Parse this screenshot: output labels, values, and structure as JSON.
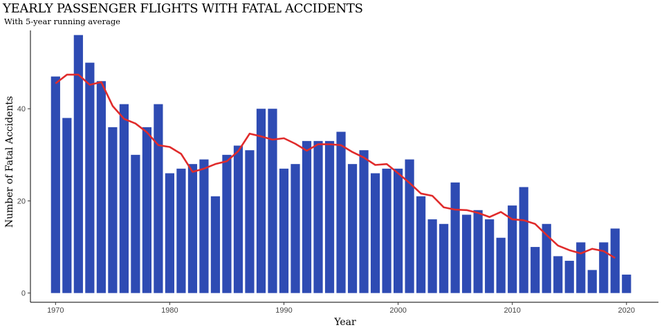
{
  "chart_data": {
    "type": "bar",
    "title": "YEARLY PASSENGER FLIGHTS WITH FATAL ACCIDENTS",
    "subtitle": "With 5-year running average",
    "xlabel": "Year",
    "ylabel": "Number of Fatal Accidents",
    "xlim": [
      1967.8,
      2022.8
    ],
    "ylim": [
      -2,
      57
    ],
    "xticks": [
      1970,
      1980,
      1990,
      2000,
      2010,
      2020
    ],
    "yticks": [
      0,
      20,
      40
    ],
    "grid": false,
    "legend": "none",
    "colors": {
      "bars": "#2e4bb3",
      "line": "#e02b2b"
    },
    "series": [
      {
        "kind": "bar",
        "x": [
          1970,
          1971,
          1972,
          1973,
          1974,
          1975,
          1976,
          1977,
          1978,
          1979,
          1980,
          1981,
          1982,
          1983,
          1984,
          1985,
          1986,
          1987,
          1988,
          1989,
          1990,
          1991,
          1992,
          1993,
          1994,
          1995,
          1996,
          1997,
          1998,
          1999,
          2000,
          2001,
          2002,
          2003,
          2004,
          2005,
          2006,
          2007,
          2008,
          2009,
          2010,
          2011,
          2012,
          2013,
          2014,
          2015,
          2016,
          2017,
          2018,
          2019,
          2020
        ],
        "values": [
          47,
          38,
          56,
          50,
          46,
          36,
          41,
          30,
          36,
          41,
          26,
          27,
          28,
          29,
          21,
          30,
          32,
          31,
          40,
          40,
          27,
          28,
          33,
          33,
          33,
          35,
          28,
          31,
          26,
          27,
          27,
          29,
          21,
          16,
          15,
          24,
          17,
          18,
          16,
          12,
          19,
          23,
          10,
          15,
          8,
          7,
          11,
          5,
          11,
          14,
          4
        ]
      },
      {
        "kind": "line",
        "x": [
          1970,
          1971,
          1972,
          1973,
          1974,
          1975,
          1976,
          1977,
          1978,
          1979,
          1980,
          1981,
          1982,
          1983,
          1984,
          1985,
          1986,
          1987,
          1988,
          1989,
          1990,
          1991,
          1992,
          1993,
          1994,
          1995,
          1996,
          1997,
          1998,
          1999,
          2000,
          2001,
          2002,
          2003,
          2004,
          2005,
          2006,
          2007,
          2008,
          2009,
          2010,
          2011,
          2012,
          2013,
          2014,
          2015,
          2016,
          2017,
          2018,
          2019
        ],
        "values": [
          45.5,
          47.4,
          47.4,
          45.2,
          45.8,
          40.6,
          37.8,
          36.8,
          34.9,
          32.1,
          31.7,
          30.2,
          26.3,
          27.0,
          28.0,
          28.6,
          30.8,
          34.6,
          34.0,
          33.3,
          33.6,
          32.4,
          30.9,
          32.3,
          32.3,
          32.1,
          30.6,
          29.4,
          27.8,
          28.0,
          26.0,
          23.9,
          21.6,
          21.1,
          18.6,
          18.1,
          18.0,
          17.4,
          16.5,
          17.6,
          16.0,
          15.8,
          15.0,
          12.6,
          10.3,
          9.3,
          8.6,
          9.6,
          9.1,
          7.6
        ]
      }
    ]
  }
}
